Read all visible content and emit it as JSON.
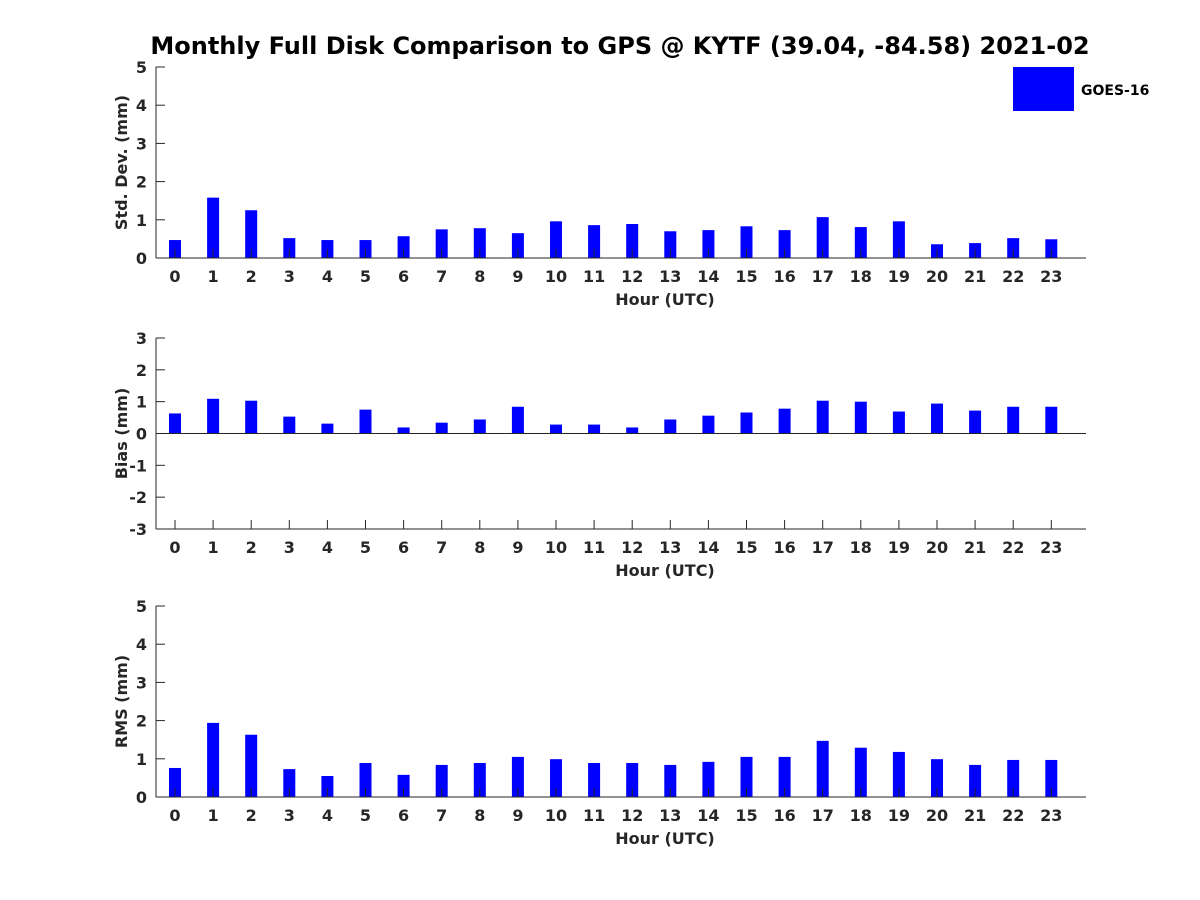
{
  "title": "Monthly Full Disk Comparison to GPS @ KYTF (39.04, -84.58) 2021-02",
  "legend": {
    "label": "GOES-16",
    "color": "#0000ff"
  },
  "chart_data": [
    {
      "type": "bar",
      "xlabel": "Hour (UTC)",
      "ylabel": "Std. Dev. (mm)",
      "ylim": [
        0,
        5
      ],
      "yticks": [
        0,
        1,
        2,
        3,
        4,
        5
      ],
      "categories": [
        "0",
        "1",
        "2",
        "3",
        "4",
        "5",
        "6",
        "7",
        "8",
        "9",
        "10",
        "11",
        "12",
        "13",
        "14",
        "15",
        "16",
        "17",
        "18",
        "19",
        "20",
        "21",
        "22",
        "23"
      ],
      "series": [
        {
          "name": "GOES-16",
          "color": "#0000ff",
          "values": [
            0.47,
            1.58,
            1.25,
            0.52,
            0.47,
            0.47,
            0.57,
            0.75,
            0.78,
            0.65,
            0.96,
            0.86,
            0.89,
            0.7,
            0.73,
            0.83,
            0.73,
            1.07,
            0.81,
            0.96,
            0.36,
            0.39,
            0.52,
            0.49
          ]
        }
      ]
    },
    {
      "type": "bar",
      "xlabel": "Hour (UTC)",
      "ylabel": "Bias (mm)",
      "ylim": [
        -3,
        3
      ],
      "yticks": [
        -3,
        -2,
        -1,
        0,
        1,
        2,
        3
      ],
      "categories": [
        "0",
        "1",
        "2",
        "3",
        "4",
        "5",
        "6",
        "7",
        "8",
        "9",
        "10",
        "11",
        "12",
        "13",
        "14",
        "15",
        "16",
        "17",
        "18",
        "19",
        "20",
        "21",
        "22",
        "23"
      ],
      "series": [
        {
          "name": "GOES-16",
          "color": "#0000ff",
          "values": [
            0.63,
            1.09,
            1.03,
            0.53,
            0.31,
            0.75,
            0.19,
            0.34,
            0.44,
            0.84,
            0.28,
            0.28,
            0.19,
            0.44,
            0.56,
            0.66,
            0.78,
            1.03,
            1.0,
            0.69,
            0.94,
            0.72,
            0.84,
            0.84
          ]
        }
      ]
    },
    {
      "type": "bar",
      "xlabel": "Hour (UTC)",
      "ylabel": "RMS (mm)",
      "ylim": [
        0,
        5
      ],
      "yticks": [
        0,
        1,
        2,
        3,
        4,
        5
      ],
      "categories": [
        "0",
        "1",
        "2",
        "3",
        "4",
        "5",
        "6",
        "7",
        "8",
        "9",
        "10",
        "11",
        "12",
        "13",
        "14",
        "15",
        "16",
        "17",
        "18",
        "19",
        "20",
        "21",
        "22",
        "23"
      ],
      "series": [
        {
          "name": "GOES-16",
          "color": "#0000ff",
          "values": [
            0.76,
            1.94,
            1.63,
            0.73,
            0.55,
            0.89,
            0.58,
            0.84,
            0.89,
            1.05,
            0.99,
            0.89,
            0.89,
            0.84,
            0.92,
            1.05,
            1.05,
            1.47,
            1.29,
            1.18,
            0.99,
            0.84,
            0.97,
            0.97
          ]
        }
      ]
    }
  ]
}
